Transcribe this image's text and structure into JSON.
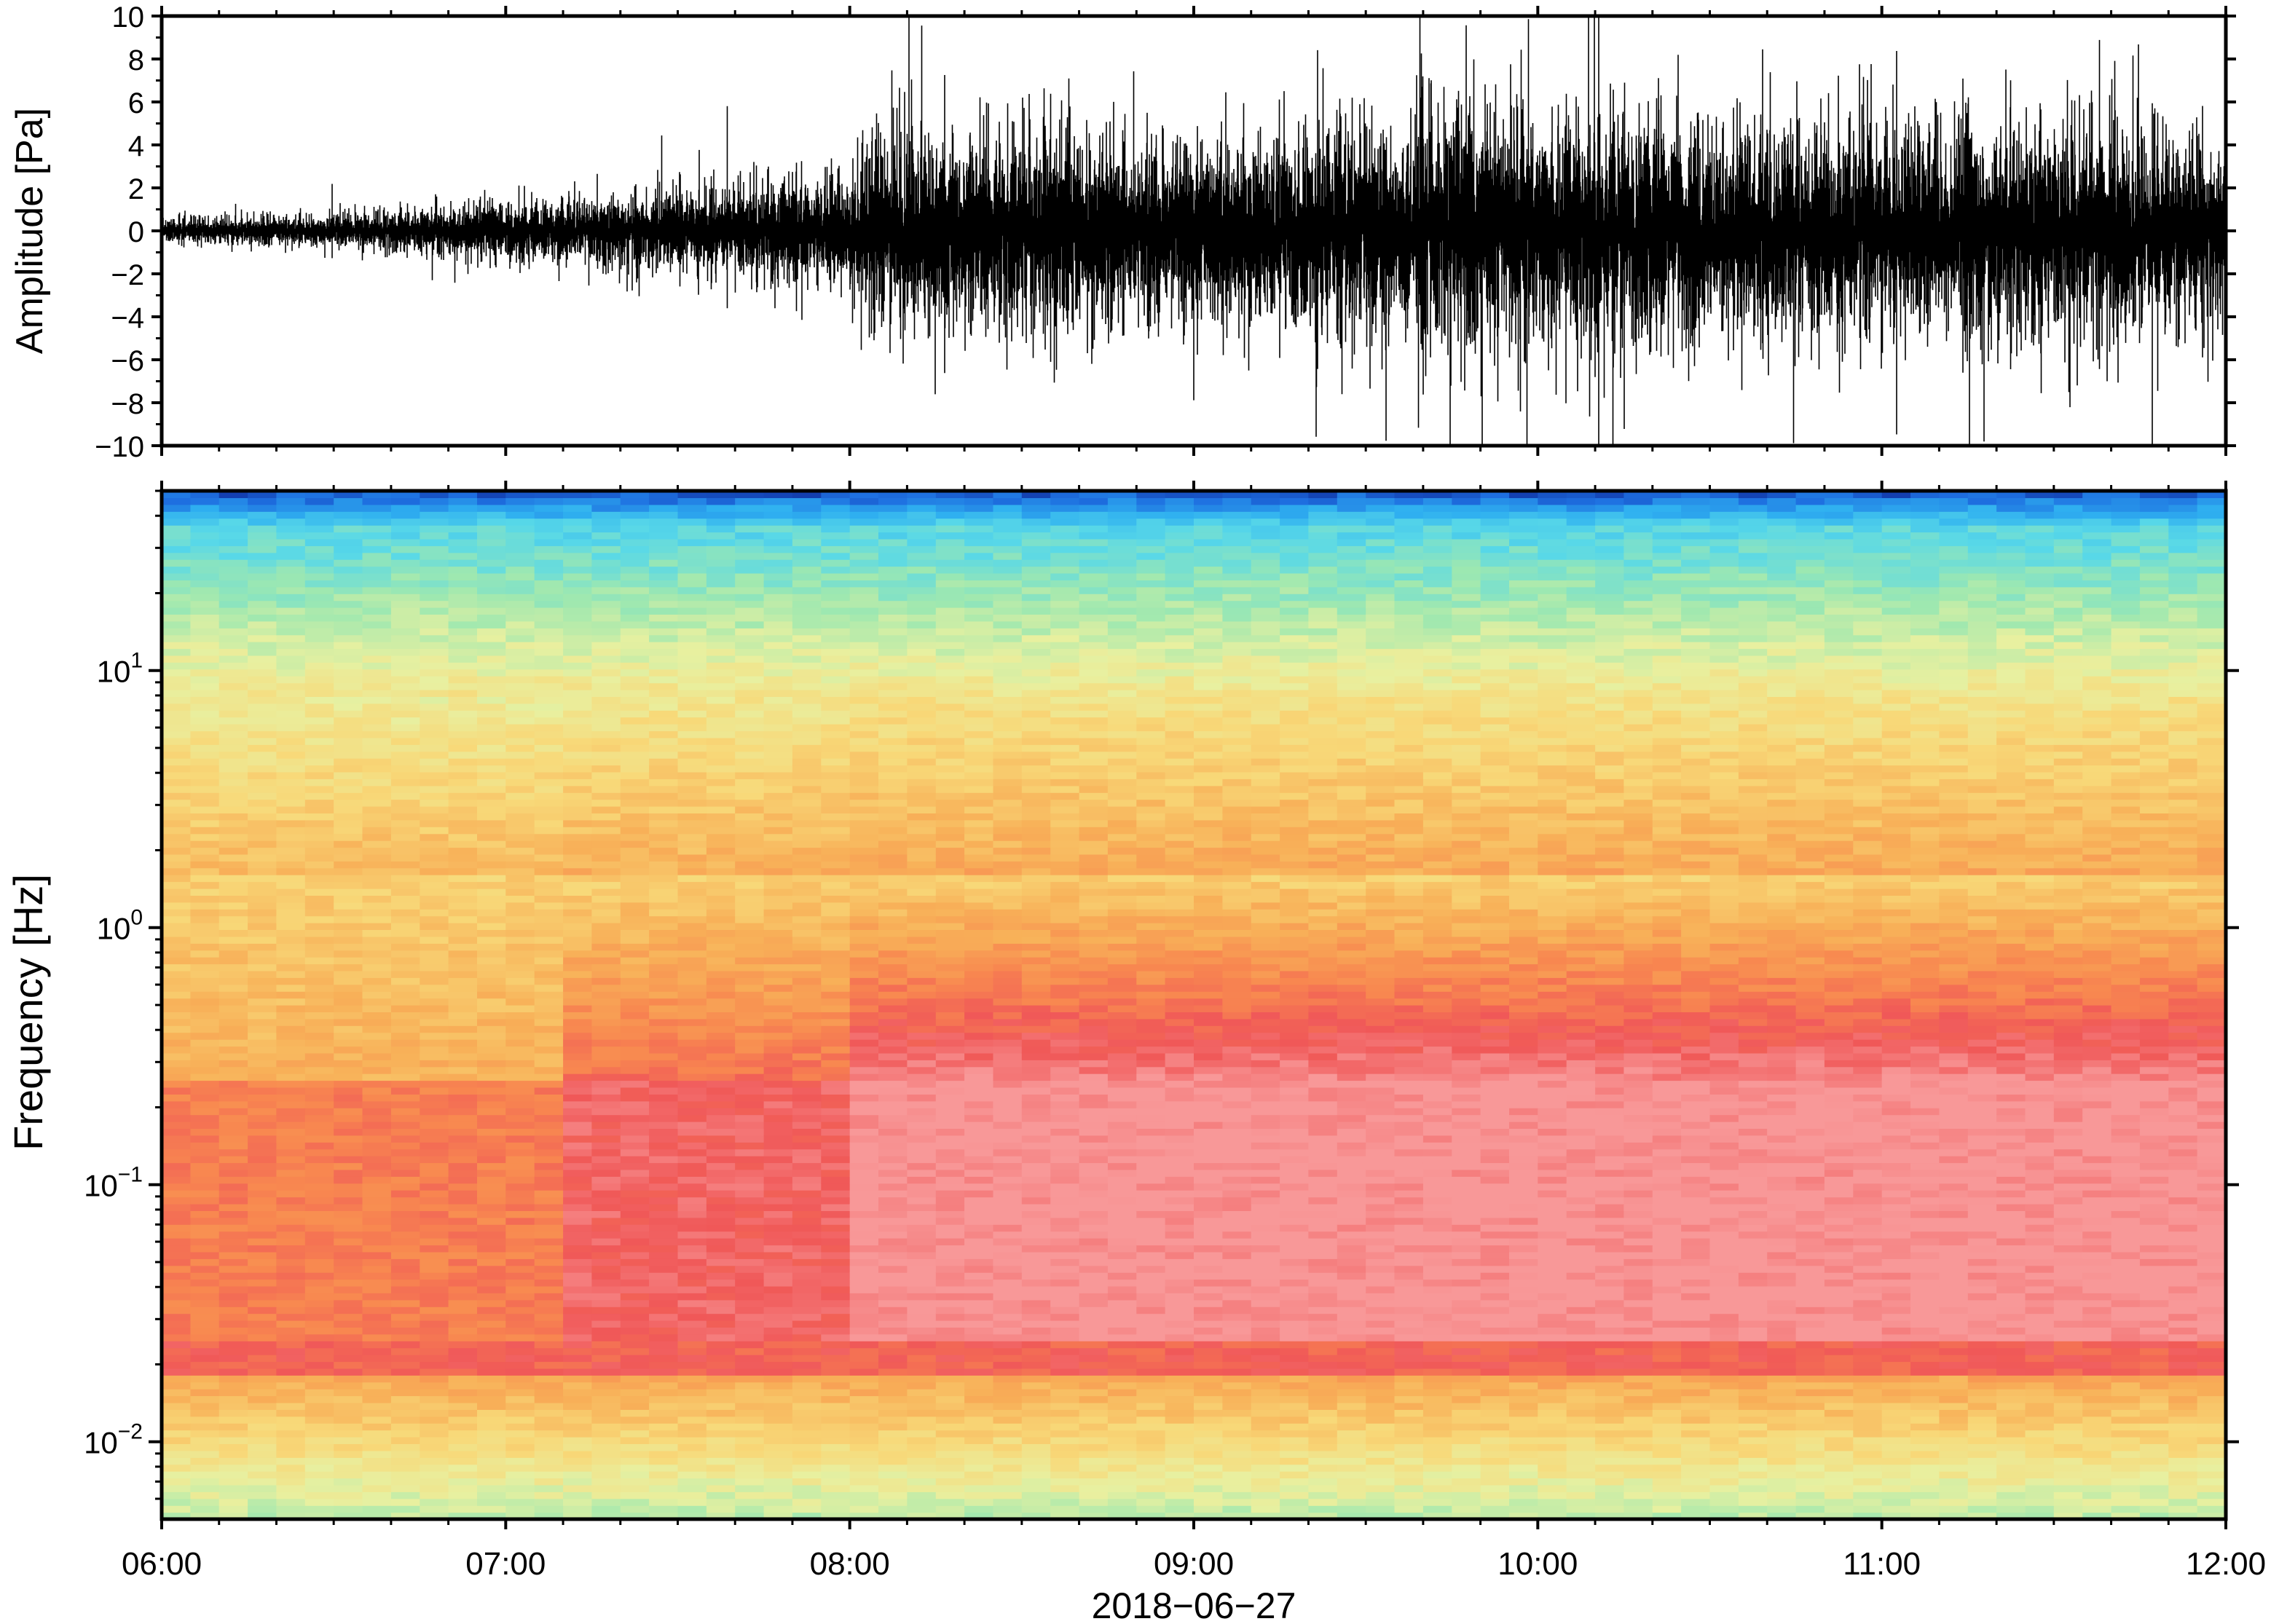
{
  "chart_data": [
    {
      "type": "line",
      "panel": "waveform",
      "ylabel": "Amplitude [Pa]",
      "ylim": [
        -10,
        10
      ],
      "yticks": [
        {
          "value": -10,
          "label": "−10"
        },
        {
          "value": -8,
          "label": "−8"
        },
        {
          "value": -6,
          "label": "−6"
        },
        {
          "value": -4,
          "label": "−4"
        },
        {
          "value": -2,
          "label": "−2"
        },
        {
          "value": 0,
          "label": "0"
        },
        {
          "value": 2,
          "label": "2"
        },
        {
          "value": 4,
          "label": "4"
        },
        {
          "value": 6,
          "label": "6"
        },
        {
          "value": 8,
          "label": "8"
        },
        {
          "value": 10,
          "label": "10"
        }
      ],
      "xlim": [
        "06:00",
        "12:00"
      ],
      "envelope": {
        "time": [
          "06:00",
          "06:30",
          "07:00",
          "07:30",
          "07:59",
          "08:01",
          "08:30",
          "09:00",
          "09:30",
          "09:36",
          "09:39",
          "10:00",
          "10:30",
          "11:00",
          "11:30",
          "12:00"
        ],
        "amplitude_pa": [
          0.6,
          0.8,
          1.4,
          2.0,
          2.6,
          4.5,
          5.0,
          4.2,
          5.2,
          4.3,
          6.5,
          5.5,
          5.5,
          5.0,
          5.2,
          4.8
        ]
      },
      "grid": false
    },
    {
      "type": "heatmap",
      "panel": "spectrogram",
      "ylabel": "Frequency [Hz]",
      "yscale": "log",
      "ylim": [
        0.005,
        50
      ],
      "yticks": [
        {
          "value": 0.01,
          "base": "10",
          "exp": "−2"
        },
        {
          "value": 0.1,
          "base": "10",
          "exp": "−1"
        },
        {
          "value": 1,
          "base": "10",
          "exp": "0"
        },
        {
          "value": 10,
          "base": "10",
          "exp": "1"
        }
      ],
      "xlim": [
        "06:00",
        "12:00"
      ],
      "colormap": [
        "#0a1a8a",
        "#1e6fe0",
        "#2fb0f0",
        "#58d8e8",
        "#9ee8b0",
        "#e8f0a0",
        "#f8d878",
        "#f8b058",
        "#f88850",
        "#f05858",
        "#f89898"
      ],
      "grid": false
    }
  ],
  "xaxis": {
    "ticks": [
      "06:00",
      "07:00",
      "08:00",
      "09:00",
      "10:00",
      "11:00",
      "12:00"
    ],
    "label": "2018−06−27"
  }
}
